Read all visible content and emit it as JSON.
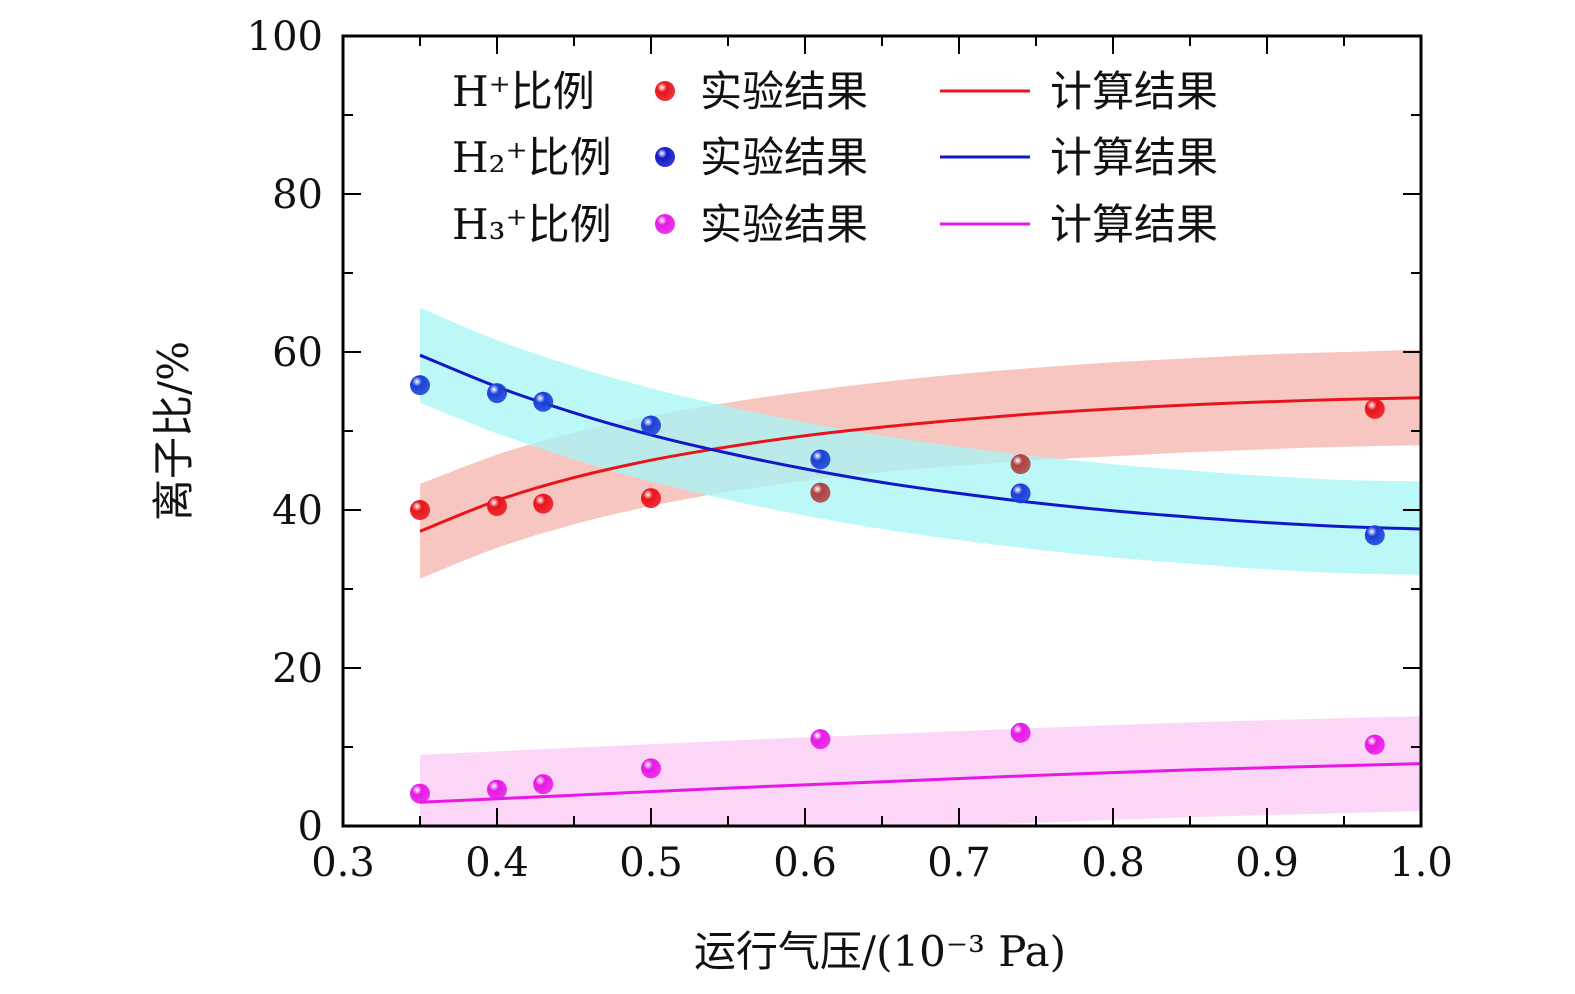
{
  "chart_data": {
    "type": "scatter",
    "xlabel": "运行气压/(10⁻³ Pa)",
    "ylabel": "离子比/%",
    "xlim": [
      0.3,
      1.0
    ],
    "ylim": [
      0,
      100
    ],
    "x_ticks": [
      "0.3",
      "0.4",
      "0.5",
      "0.6",
      "0.7",
      "0.8",
      "0.9",
      "1.0"
    ],
    "y_ticks": [
      "0",
      "20",
      "40",
      "60",
      "80",
      "100"
    ],
    "x_tick_values": [
      0.3,
      0.4,
      0.5,
      0.6,
      0.7,
      0.8,
      0.9,
      1.0
    ],
    "y_tick_values": [
      0,
      20,
      40,
      60,
      80,
      100
    ],
    "legend_position": "top",
    "grid": false,
    "series": [
      {
        "name": "H⁺比例",
        "color": "#e8141b",
        "band_color": "#f4b3ac",
        "marker_label": "实验结果",
        "line_label": "计算结果",
        "experiment": {
          "x": [
            0.35,
            0.4,
            0.43,
            0.5,
            0.61,
            0.74,
            0.97
          ],
          "y": [
            40.0,
            40.5,
            40.8,
            41.5,
            42.2,
            45.8,
            52.8
          ],
          "point_colors": [
            "#e8141b",
            "#e8141b",
            "#e8141b",
            "#e8141b",
            "#b04040",
            "#b04040",
            "#e8141b"
          ]
        },
        "fit": {
          "x": [
            0.35,
            0.4,
            0.45,
            0.5,
            0.55,
            0.6,
            0.65,
            0.7,
            0.75,
            0.8,
            0.85,
            0.9,
            0.95,
            1.0
          ],
          "y": [
            37.3,
            41.2,
            44.1,
            46.3,
            48.0,
            49.4,
            50.5,
            51.4,
            52.2,
            52.8,
            53.3,
            53.7,
            54.0,
            54.2
          ]
        },
        "band": {
          "x": [
            0.35,
            0.4,
            0.45,
            0.5,
            0.55,
            0.6,
            0.65,
            0.7,
            0.75,
            0.8,
            0.85,
            0.9,
            0.95,
            1.0
          ],
          "upper": [
            43.3,
            47.0,
            49.8,
            51.9,
            53.6,
            55.0,
            56.2,
            57.2,
            58.0,
            58.7,
            59.2,
            59.7,
            60.0,
            60.3
          ],
          "lower": [
            31.3,
            35.2,
            38.2,
            40.5,
            42.3,
            43.7,
            44.8,
            45.6,
            46.3,
            46.8,
            47.3,
            47.7,
            48.0,
            48.2
          ]
        }
      },
      {
        "name": "H₂⁺比例",
        "color": "#1218c8",
        "band_color": "#a6f5f5",
        "marker_label": "实验结果",
        "line_label": "计算结果",
        "experiment": {
          "x": [
            0.35,
            0.4,
            0.43,
            0.5,
            0.61,
            0.74,
            0.97
          ],
          "y": [
            55.8,
            54.8,
            53.7,
            50.7,
            46.4,
            42.1,
            36.8
          ],
          "point_colors": [
            "#1a3fd6",
            "#1a3fd6",
            "#1a3fd6",
            "#1a3fd6",
            "#1a3fd6",
            "#1a3fd6",
            "#1a3fd6"
          ]
        },
        "fit": {
          "x": [
            0.35,
            0.4,
            0.45,
            0.5,
            0.55,
            0.6,
            0.65,
            0.7,
            0.75,
            0.8,
            0.85,
            0.9,
            0.95,
            1.0
          ],
          "y": [
            59.6,
            55.6,
            52.3,
            49.5,
            47.2,
            45.2,
            43.5,
            42.1,
            40.9,
            39.9,
            39.1,
            38.4,
            37.9,
            37.6
          ]
        },
        "band": {
          "x": [
            0.35,
            0.4,
            0.45,
            0.5,
            0.55,
            0.6,
            0.65,
            0.7,
            0.75,
            0.8,
            0.85,
            0.9,
            0.95,
            1.0
          ],
          "upper": [
            65.6,
            61.5,
            58.2,
            55.4,
            53.1,
            51.1,
            49.4,
            48.0,
            46.8,
            45.8,
            45.0,
            44.3,
            43.8,
            43.6
          ],
          "lower": [
            53.6,
            49.7,
            46.4,
            43.6,
            41.3,
            39.3,
            37.6,
            36.2,
            35.0,
            34.0,
            33.2,
            32.5,
            32.0,
            31.8
          ]
        }
      },
      {
        "name": "H₃⁺比例",
        "color": "#e619e6",
        "band_color": "#f9c8f4",
        "marker_label": "实验结果",
        "line_label": "计算结果",
        "experiment": {
          "x": [
            0.35,
            0.4,
            0.43,
            0.5,
            0.61,
            0.74,
            0.97
          ],
          "y": [
            4.1,
            4.6,
            5.3,
            7.3,
            11.0,
            11.8,
            10.3
          ],
          "point_colors": [
            "#e619e6",
            "#e619e6",
            "#e619e6",
            "#e619e6",
            "#e619e6",
            "#e619e6",
            "#e619e6"
          ]
        },
        "fit": {
          "x": [
            0.35,
            0.45,
            0.55,
            0.65,
            0.75,
            0.85,
            1.0
          ],
          "y": [
            3.0,
            3.9,
            4.8,
            5.6,
            6.4,
            7.1,
            7.9
          ]
        },
        "band": {
          "x": [
            0.35,
            0.45,
            0.55,
            0.65,
            0.75,
            0.85,
            1.0
          ],
          "upper": [
            9.0,
            9.9,
            10.8,
            11.6,
            12.4,
            13.1,
            13.9
          ],
          "lower": [
            -3.0,
            -2.1,
            -1.2,
            -0.4,
            0.4,
            1.1,
            1.9
          ]
        }
      }
    ]
  }
}
